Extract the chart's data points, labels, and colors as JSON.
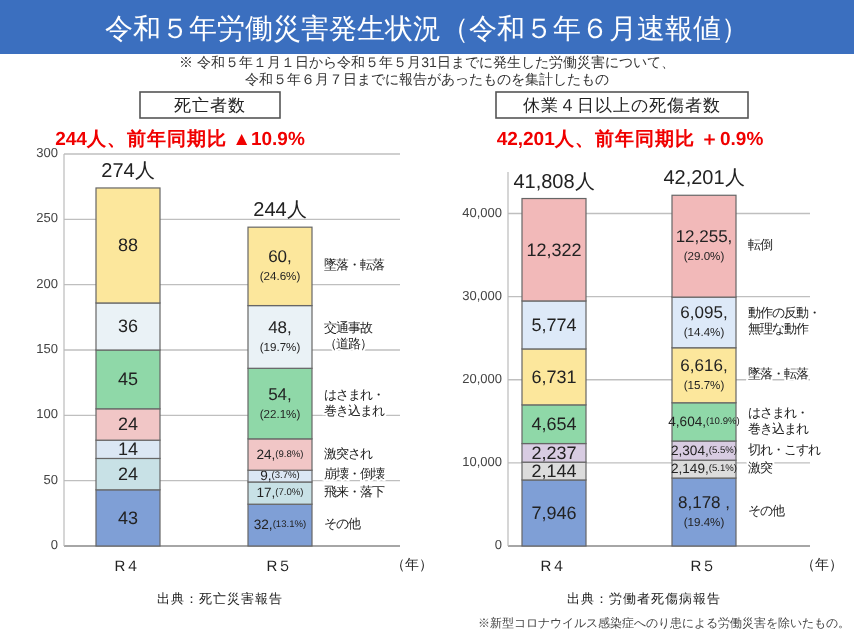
{
  "chart_data": [
    {
      "type": "other",
      "title": "令和５年労働災害発生状況（令和５年６月速報値）",
      "subtitle": "※ 令和５年１月１日から令和５年５月31日までに発生した労働災害について、令和５年６月７日までに報告があったものを集計したもの"
    },
    {
      "type": "bar",
      "stacked": true,
      "title": "死亡者数",
      "subtitle": "244人、前年同期比 ▲10.9%",
      "xlabel": "（年）",
      "categories": [
        "R４",
        "R５"
      ],
      "ylim": [
        0,
        300
      ],
      "yticks": [
        0,
        50,
        100,
        150,
        200,
        250,
        300
      ],
      "grid": "y",
      "legend": false,
      "totals": [
        "274人",
        "244人"
      ],
      "series": [
        {
          "name": "その他",
          "color": "#7f9fd6",
          "values": [
            43,
            32
          ],
          "value_labels": [
            "43",
            "32,(13.1%)"
          ]
        },
        {
          "name": "飛来・落下",
          "color": "#c8e1e6",
          "values": [
            24,
            17
          ],
          "value_labels": [
            "24",
            "17,(7.0%)"
          ]
        },
        {
          "name": "崩壊・倒壊",
          "color": "#dbe7f4",
          "values": [
            14,
            9
          ],
          "value_labels": [
            "14",
            "9,(3.7%)"
          ]
        },
        {
          "name": "激突され",
          "color": "#f1c6c6",
          "values": [
            24,
            24
          ],
          "value_labels": [
            "24",
            "24,(9.8%)"
          ]
        },
        {
          "name": "はさまれ・巻き込まれ",
          "color": "#8fd8a8",
          "values": [
            45,
            54
          ],
          "value_labels": [
            "45",
            "54,(22.1%)"
          ]
        },
        {
          "name": "交通事故（道路）",
          "color": "#eaf2f6",
          "values": [
            36,
            48
          ],
          "value_labels": [
            "36",
            "48,(19.7%)"
          ]
        },
        {
          "name": "墜落・転落",
          "color": "#fce79c",
          "values": [
            88,
            60
          ],
          "value_labels": [
            "88",
            "60,(24.6%)"
          ]
        }
      ],
      "annotations": [
        "出典：死亡災害報告"
      ]
    },
    {
      "type": "bar",
      "stacked": true,
      "title": "休業４日以上の死傷者数",
      "subtitle": "42,201人、前年同期比 ＋0.9%",
      "xlabel": "（年）",
      "categories": [
        "R４",
        "R５"
      ],
      "ylim": [
        0,
        45000
      ],
      "yticks": [
        0,
        {
          "value": 10000,
          "label": "10,000"
        },
        {
          "value": 20000,
          "label": "20,000"
        },
        {
          "value": 30000,
          "label": "30,000"
        },
        {
          "value": 40000,
          "label": "40,000"
        }
      ],
      "grid": "y",
      "legend": false,
      "totals": [
        "41,808人",
        "42,201人"
      ],
      "series": [
        {
          "name": "その他",
          "color": "#7f9fd6",
          "values": [
            7946,
            8178
          ],
          "value_labels": [
            "7,946",
            "8,178 ,(19.4%)"
          ]
        },
        {
          "name": "激突",
          "color": "#dcdcdc",
          "values": [
            2144,
            2149
          ],
          "value_labels": [
            "2,144",
            "2,149,(5.1%)"
          ]
        },
        {
          "name": "切れ・こすれ",
          "color": "#d8cce2",
          "values": [
            2237,
            2304
          ],
          "value_labels": [
            "2,237",
            "2,304,(5.5%)"
          ]
        },
        {
          "name": "はさまれ・巻き込まれ",
          "color": "#8fd8a8",
          "values": [
            4654,
            4604
          ],
          "value_labels": [
            "4,654",
            "4,604,(10.9%)"
          ]
        },
        {
          "name": "墜落・転落",
          "color": "#fce79c",
          "values": [
            6731,
            6616
          ],
          "value_labels": [
            "6,731",
            "6,616,(15.7%)"
          ]
        },
        {
          "name": "動作の反動・無理な動作",
          "color": "#dde9f8",
          "values": [
            5774,
            6095
          ],
          "value_labels": [
            "5,774",
            "6,095,(14.4%)"
          ]
        },
        {
          "name": "転倒",
          "color": "#f2b9b9",
          "values": [
            12322,
            12255
          ],
          "value_labels": [
            "12,322",
            "12,255,(29.0%)"
          ]
        }
      ],
      "annotations": [
        "出典：労働者死傷病報告",
        "※新型コロナウイルス感染症へのり患による労働災害を除いたもの。"
      ]
    }
  ]
}
